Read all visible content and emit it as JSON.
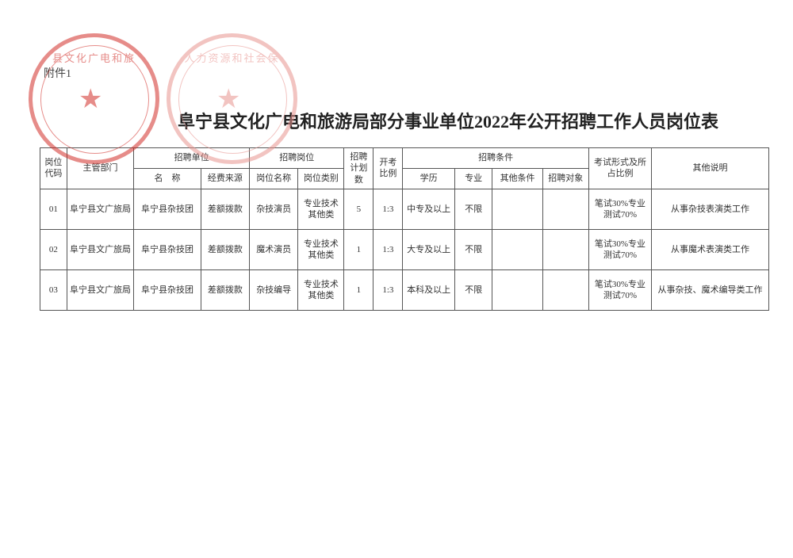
{
  "attachment_label": "附件1",
  "title": "阜宁县文化广电和旅游局部分事业单位2022年公开招聘工作人员岗位表",
  "stamps": {
    "left_text": "县文化广电和旅",
    "right_text": "人力资源和社会保"
  },
  "table": {
    "headers": {
      "code": "岗位代码",
      "dept": "主管部门",
      "unit_group": "招聘单位",
      "unit_name": "名　称",
      "fund": "经费来源",
      "position_group": "招聘岗位",
      "pname": "岗位名称",
      "ptype": "岗位类别",
      "plan": "招聘计划数",
      "ratio": "开考比例",
      "cond_group": "招聘条件",
      "edu": "学历",
      "major": "专业",
      "other": "其他条件",
      "target": "招聘对象",
      "exam": "考试形式及所占比例",
      "remark": "其他说明"
    },
    "rows": [
      {
        "code": "01",
        "dept": "阜宁县文广旅局",
        "unit_name": "阜宁县杂技团",
        "fund": "差额拨款",
        "pname": "杂技演员",
        "ptype": "专业技术其他类",
        "plan": "5",
        "ratio": "1:3",
        "edu": "中专及以上",
        "major": "不限",
        "other": "",
        "target": "",
        "exam": "笔试30%专业测试70%",
        "remark": "从事杂技表演类工作"
      },
      {
        "code": "02",
        "dept": "阜宁县文广旅局",
        "unit_name": "阜宁县杂技团",
        "fund": "差额拨款",
        "pname": "魔术演员",
        "ptype": "专业技术其他类",
        "plan": "1",
        "ratio": "1:3",
        "edu": "大专及以上",
        "major": "不限",
        "other": "",
        "target": "",
        "exam": "笔试30%专业测试70%",
        "remark": "从事魔术表演类工作"
      },
      {
        "code": "03",
        "dept": "阜宁县文广旅局",
        "unit_name": "阜宁县杂技团",
        "fund": "差额拨款",
        "pname": "杂技编导",
        "ptype": "专业技术其他类",
        "plan": "1",
        "ratio": "1:3",
        "edu": "本科及以上",
        "major": "不限",
        "other": "",
        "target": "",
        "exam": "笔试30%专业测试70%",
        "remark": "从事杂技、魔术编导类工作"
      }
    ]
  },
  "colors": {
    "stamp_red": "#d2302a",
    "stamp_pink": "#e89490",
    "border": "#555555",
    "text": "#333333",
    "background": "#ffffff"
  }
}
